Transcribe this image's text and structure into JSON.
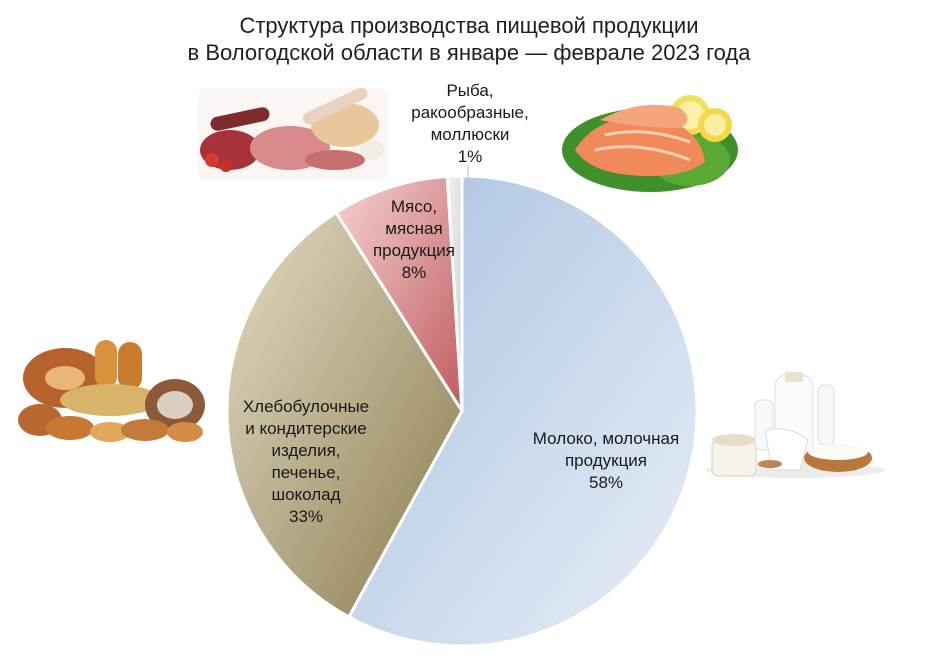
{
  "title": {
    "line1": "Структура производства пищевой продукции",
    "line2": "в Вологодской области в январе — феврале 2023 года"
  },
  "chart_data": {
    "type": "pie",
    "start_angle_deg": 0,
    "direction": "clockwise",
    "slices": [
      {
        "label_lines": [
          "Молоко, молочная",
          "продукция"
        ],
        "value": 58,
        "value_label": "58%",
        "color_light": "#e9eff7",
        "color_dark": "#a9c2e0"
      },
      {
        "label_lines": [
          "Хлебобулочные",
          "и кондитерские",
          "изделия,",
          "печенье,",
          "шоколад"
        ],
        "value": 33,
        "value_label": "33%",
        "color_light": "#e3dcc6",
        "color_dark": "#8a7c4e"
      },
      {
        "label_lines": [
          "Мясо,",
          "мясная",
          "продукция"
        ],
        "value": 8,
        "value_label": "8%",
        "color_light": "#f5d3d3",
        "color_dark": "#c05b5f"
      },
      {
        "label_lines": [
          "Рыба,",
          "ракообразные,",
          "моллюски"
        ],
        "value": 1,
        "value_label": "1%",
        "color_light": "#f2f2f2",
        "color_dark": "#cfcfcf"
      }
    ]
  },
  "images": [
    {
      "name": "meat-image",
      "depicts": "meat products"
    },
    {
      "name": "fish-image",
      "depicts": "salmon fillet with lemon"
    },
    {
      "name": "bread-image",
      "depicts": "bread and pastries"
    },
    {
      "name": "dairy-image",
      "depicts": "milk and dairy products"
    }
  ]
}
